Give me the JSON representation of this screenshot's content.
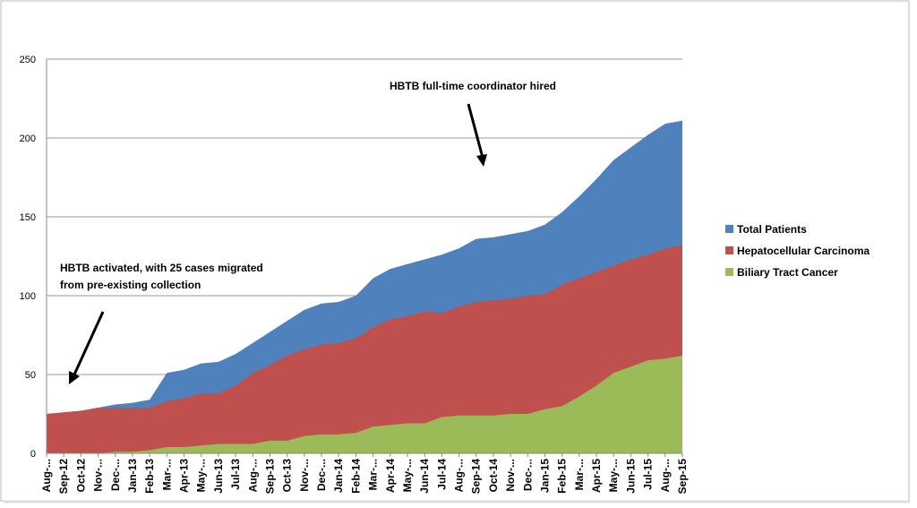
{
  "chart_data": {
    "type": "area",
    "categories": [
      "Aug-...",
      "Sep-12",
      "Oct-12",
      "Nov-...",
      "Dec-...",
      "Jan-13",
      "Feb-13",
      "Mar-...",
      "Apr-13",
      "May-...",
      "Jun-13",
      "Jul-13",
      "Aug-...",
      "Sep-13",
      "Oct-13",
      "Nov-...",
      "Dec-...",
      "Jan-14",
      "Feb-14",
      "Mar-...",
      "Apr-14",
      "May-...",
      "Jun-14",
      "Jul-14",
      "Aug-...",
      "Sep-14",
      "Oct-14",
      "Nov-...",
      "Dec-...",
      "Jan-15",
      "Feb-15",
      "Mar-...",
      "Apr-15",
      "May-...",
      "Jun-15",
      "Jul-15",
      "Aug-...",
      "Sep-15"
    ],
    "series": [
      {
        "name": "Total Patients",
        "color": "#4f81bd",
        "values": [
          25,
          26,
          27,
          29,
          31,
          32,
          34,
          51,
          53,
          57,
          58,
          63,
          70,
          77,
          84,
          91,
          95,
          96,
          100,
          111,
          117,
          120,
          123,
          126,
          130,
          136,
          137,
          139,
          141,
          145,
          153,
          163,
          174,
          186,
          194,
          202,
          209,
          211
        ]
      },
      {
        "name": "Hepatocellular Carcinoma",
        "color": "#c0504d",
        "values": [
          25,
          26,
          27,
          29,
          29,
          29,
          29,
          33,
          35,
          38,
          38,
          43,
          51,
          56,
          62,
          66,
          69,
          70,
          73,
          80,
          85,
          87,
          90,
          89,
          93,
          96,
          97,
          98,
          100,
          101,
          107,
          111,
          115,
          119,
          123,
          126,
          130,
          132
        ]
      },
      {
        "name": "Biliary Tract Cancer",
        "color": "#9bbb59",
        "values": [
          0,
          0,
          0,
          0,
          1,
          1,
          2,
          4,
          4,
          5,
          6,
          6,
          6,
          8,
          8,
          11,
          12,
          12,
          13,
          17,
          18,
          19,
          19,
          23,
          24,
          24,
          24,
          25,
          25,
          28,
          30,
          36,
          43,
          51,
          55,
          59,
          60,
          62
        ]
      }
    ],
    "ylim": [
      0,
      250
    ],
    "yticks": [
      0,
      50,
      100,
      150,
      200,
      250
    ],
    "grid": true,
    "legend": "right",
    "annotations": [
      {
        "lines": [
          "HBTB full-time coordinator hired"
        ]
      },
      {
        "lines": [
          "HBTB activated, with 25 cases migrated",
          "from pre-existing collection"
        ]
      }
    ]
  }
}
